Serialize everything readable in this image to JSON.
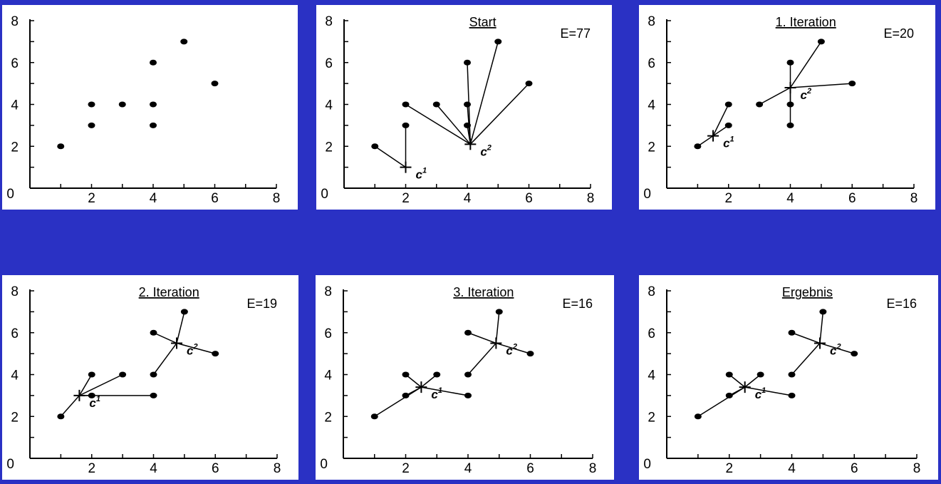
{
  "chart_data": [
    {
      "type": "scatter",
      "title": "",
      "energy_label": "",
      "xlim": [
        0,
        8
      ],
      "ylim": [
        0,
        8
      ],
      "ticks": [
        0,
        2,
        4,
        6,
        8
      ],
      "points": [
        [
          1,
          2
        ],
        [
          2,
          3
        ],
        [
          2,
          4
        ],
        [
          3,
          4
        ],
        [
          4,
          3
        ],
        [
          4,
          4
        ],
        [
          4,
          6
        ],
        [
          5,
          7
        ],
        [
          6,
          5
        ]
      ],
      "centroids": []
    },
    {
      "type": "scatter",
      "title": "Start",
      "energy_label": "E=77",
      "xlim": [
        0,
        8
      ],
      "ylim": [
        0,
        8
      ],
      "ticks": [
        0,
        2,
        4,
        6,
        8
      ],
      "points": [
        [
          1,
          2
        ],
        [
          2,
          3
        ],
        [
          2,
          4
        ],
        [
          3,
          4
        ],
        [
          4,
          3
        ],
        [
          4,
          4
        ],
        [
          4,
          6
        ],
        [
          5,
          7
        ],
        [
          6,
          5
        ]
      ],
      "centroids": [
        {
          "label": "c",
          "index": "1",
          "x": 2,
          "y": 1,
          "members": [
            0,
            1
          ]
        },
        {
          "label": "c",
          "index": "2",
          "x": 4.1,
          "y": 2.1,
          "members": [
            2,
            3,
            4,
            5,
            6,
            7,
            8
          ]
        }
      ]
    },
    {
      "type": "scatter",
      "title": "1. Iteration",
      "energy_label": "E=20",
      "xlim": [
        0,
        8
      ],
      "ylim": [
        0,
        8
      ],
      "ticks": [
        0,
        2,
        4,
        6,
        8
      ],
      "points": [
        [
          1,
          2
        ],
        [
          2,
          3
        ],
        [
          2,
          4
        ],
        [
          3,
          4
        ],
        [
          4,
          3
        ],
        [
          4,
          4
        ],
        [
          4,
          6
        ],
        [
          5,
          7
        ],
        [
          6,
          5
        ]
      ],
      "centroids": [
        {
          "label": "c",
          "index": "1",
          "x": 1.5,
          "y": 2.5,
          "members": [
            0,
            1,
            2
          ]
        },
        {
          "label": "c",
          "index": "2",
          "x": 4,
          "y": 4.8,
          "members": [
            3,
            4,
            5,
            6,
            7,
            8
          ]
        }
      ]
    },
    {
      "type": "scatter",
      "title": "2. Iteration",
      "energy_label": "E=19",
      "xlim": [
        0,
        8
      ],
      "ylim": [
        0,
        8
      ],
      "ticks": [
        0,
        2,
        4,
        6,
        8
      ],
      "points": [
        [
          1,
          2
        ],
        [
          2,
          3
        ],
        [
          2,
          4
        ],
        [
          3,
          4
        ],
        [
          4,
          3
        ],
        [
          4,
          4
        ],
        [
          4,
          6
        ],
        [
          5,
          7
        ],
        [
          6,
          5
        ]
      ],
      "centroids": [
        {
          "label": "c",
          "index": "1",
          "x": 1.6,
          "y": 3,
          "members": [
            0,
            1,
            2,
            3,
            4
          ]
        },
        {
          "label": "c",
          "index": "2",
          "x": 4.75,
          "y": 5.5,
          "members": [
            5,
            6,
            7,
            8
          ]
        }
      ]
    },
    {
      "type": "scatter",
      "title": "3. Iteration",
      "energy_label": "E=16",
      "xlim": [
        0,
        8
      ],
      "ylim": [
        0,
        8
      ],
      "ticks": [
        0,
        2,
        4,
        6,
        8
      ],
      "points": [
        [
          1,
          2
        ],
        [
          2,
          3
        ],
        [
          2,
          4
        ],
        [
          3,
          4
        ],
        [
          4,
          3
        ],
        [
          4,
          4
        ],
        [
          4,
          6
        ],
        [
          5,
          7
        ],
        [
          6,
          5
        ]
      ],
      "centroids": [
        {
          "label": "c",
          "index": "1",
          "x": 2.5,
          "y": 3.4,
          "members": [
            0,
            1,
            2,
            3,
            4
          ]
        },
        {
          "label": "c",
          "index": "2",
          "x": 4.9,
          "y": 5.5,
          "members": [
            5,
            6,
            7,
            8
          ]
        }
      ]
    },
    {
      "type": "scatter",
      "title": "Ergebnis",
      "energy_label": "E=16",
      "xlim": [
        0,
        8
      ],
      "ylim": [
        0,
        8
      ],
      "ticks": [
        0,
        2,
        4,
        6,
        8
      ],
      "points": [
        [
          1,
          2
        ],
        [
          2,
          3
        ],
        [
          2,
          4
        ],
        [
          3,
          4
        ],
        [
          4,
          3
        ],
        [
          4,
          4
        ],
        [
          4,
          6
        ],
        [
          5,
          7
        ],
        [
          6,
          5
        ]
      ],
      "centroids": [
        {
          "label": "c",
          "index": "1",
          "x": 2.5,
          "y": 3.4,
          "members": [
            0,
            1,
            2,
            3,
            4
          ]
        },
        {
          "label": "c",
          "index": "2",
          "x": 4.9,
          "y": 5.5,
          "members": [
            5,
            6,
            7,
            8
          ]
        }
      ]
    }
  ]
}
